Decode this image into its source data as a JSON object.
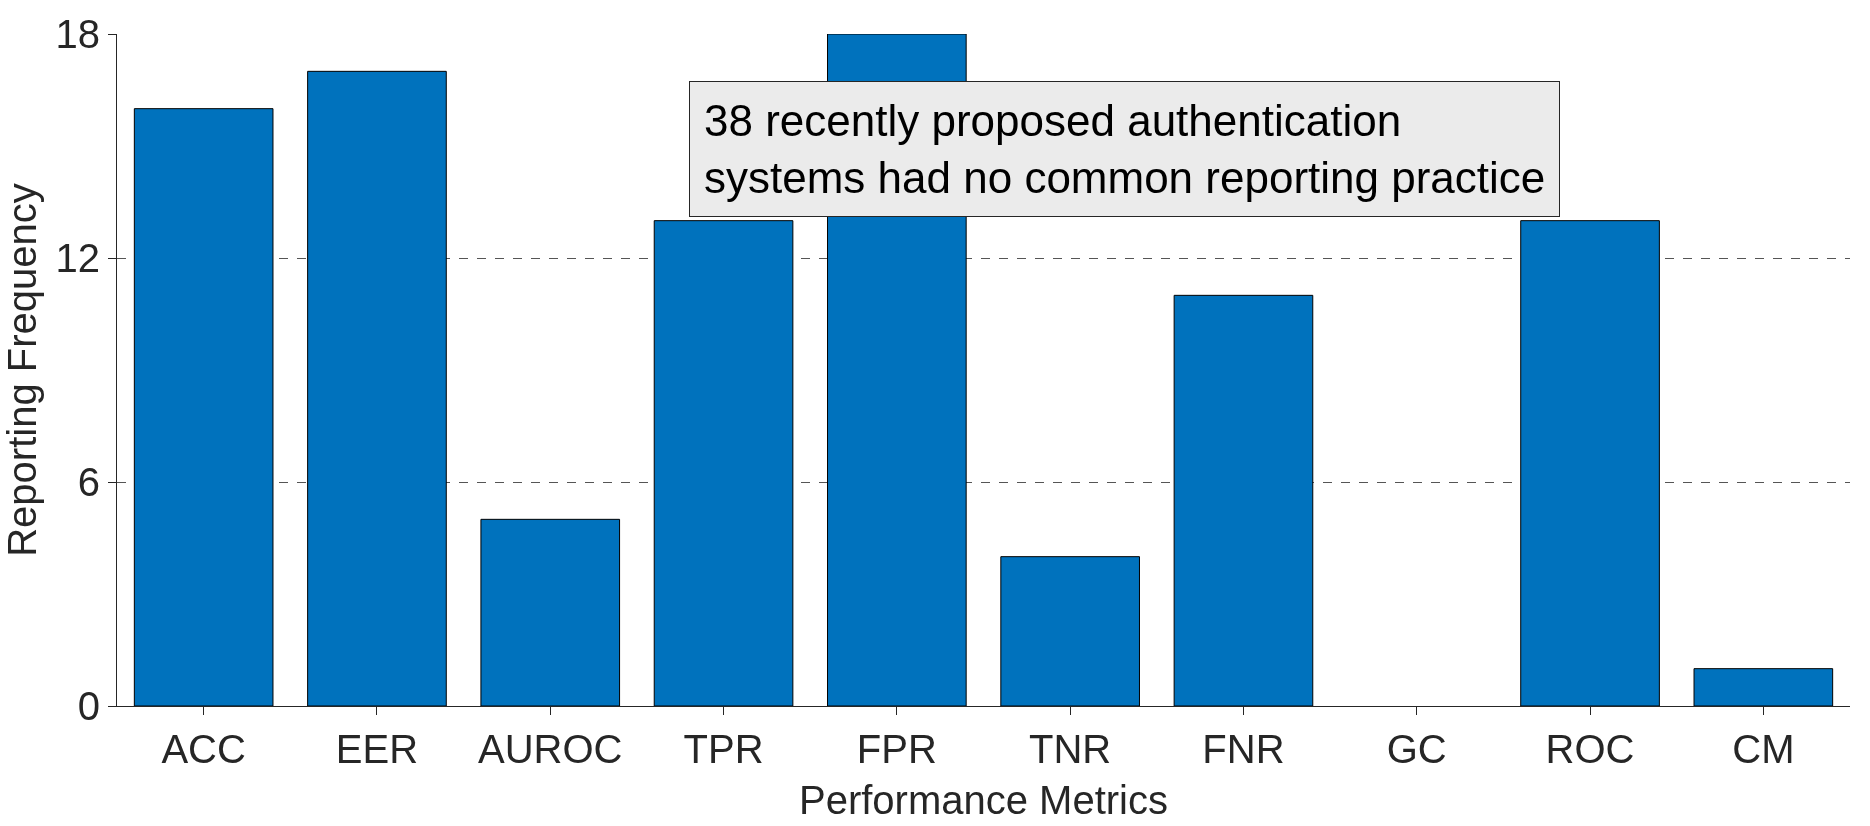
{
  "chart_data": {
    "type": "bar",
    "xlabel": "Performance Metrics",
    "ylabel": "Reporting Frequency",
    "categories": [
      "ACC",
      "EER",
      "AUROC",
      "TPR",
      "FPR",
      "TNR",
      "FNR",
      "GC",
      "ROC",
      "CM"
    ],
    "values": [
      16,
      17,
      5,
      13,
      18,
      4,
      11,
      0,
      13,
      1
    ],
    "color": "#0072bd",
    "ylim": [
      0,
      18
    ],
    "yticks": [
      0,
      6,
      12,
      18
    ],
    "grid": "y",
    "legend": false,
    "annotations": [
      "38 recently proposed authentication\nsystems had no common reporting practice"
    ]
  }
}
